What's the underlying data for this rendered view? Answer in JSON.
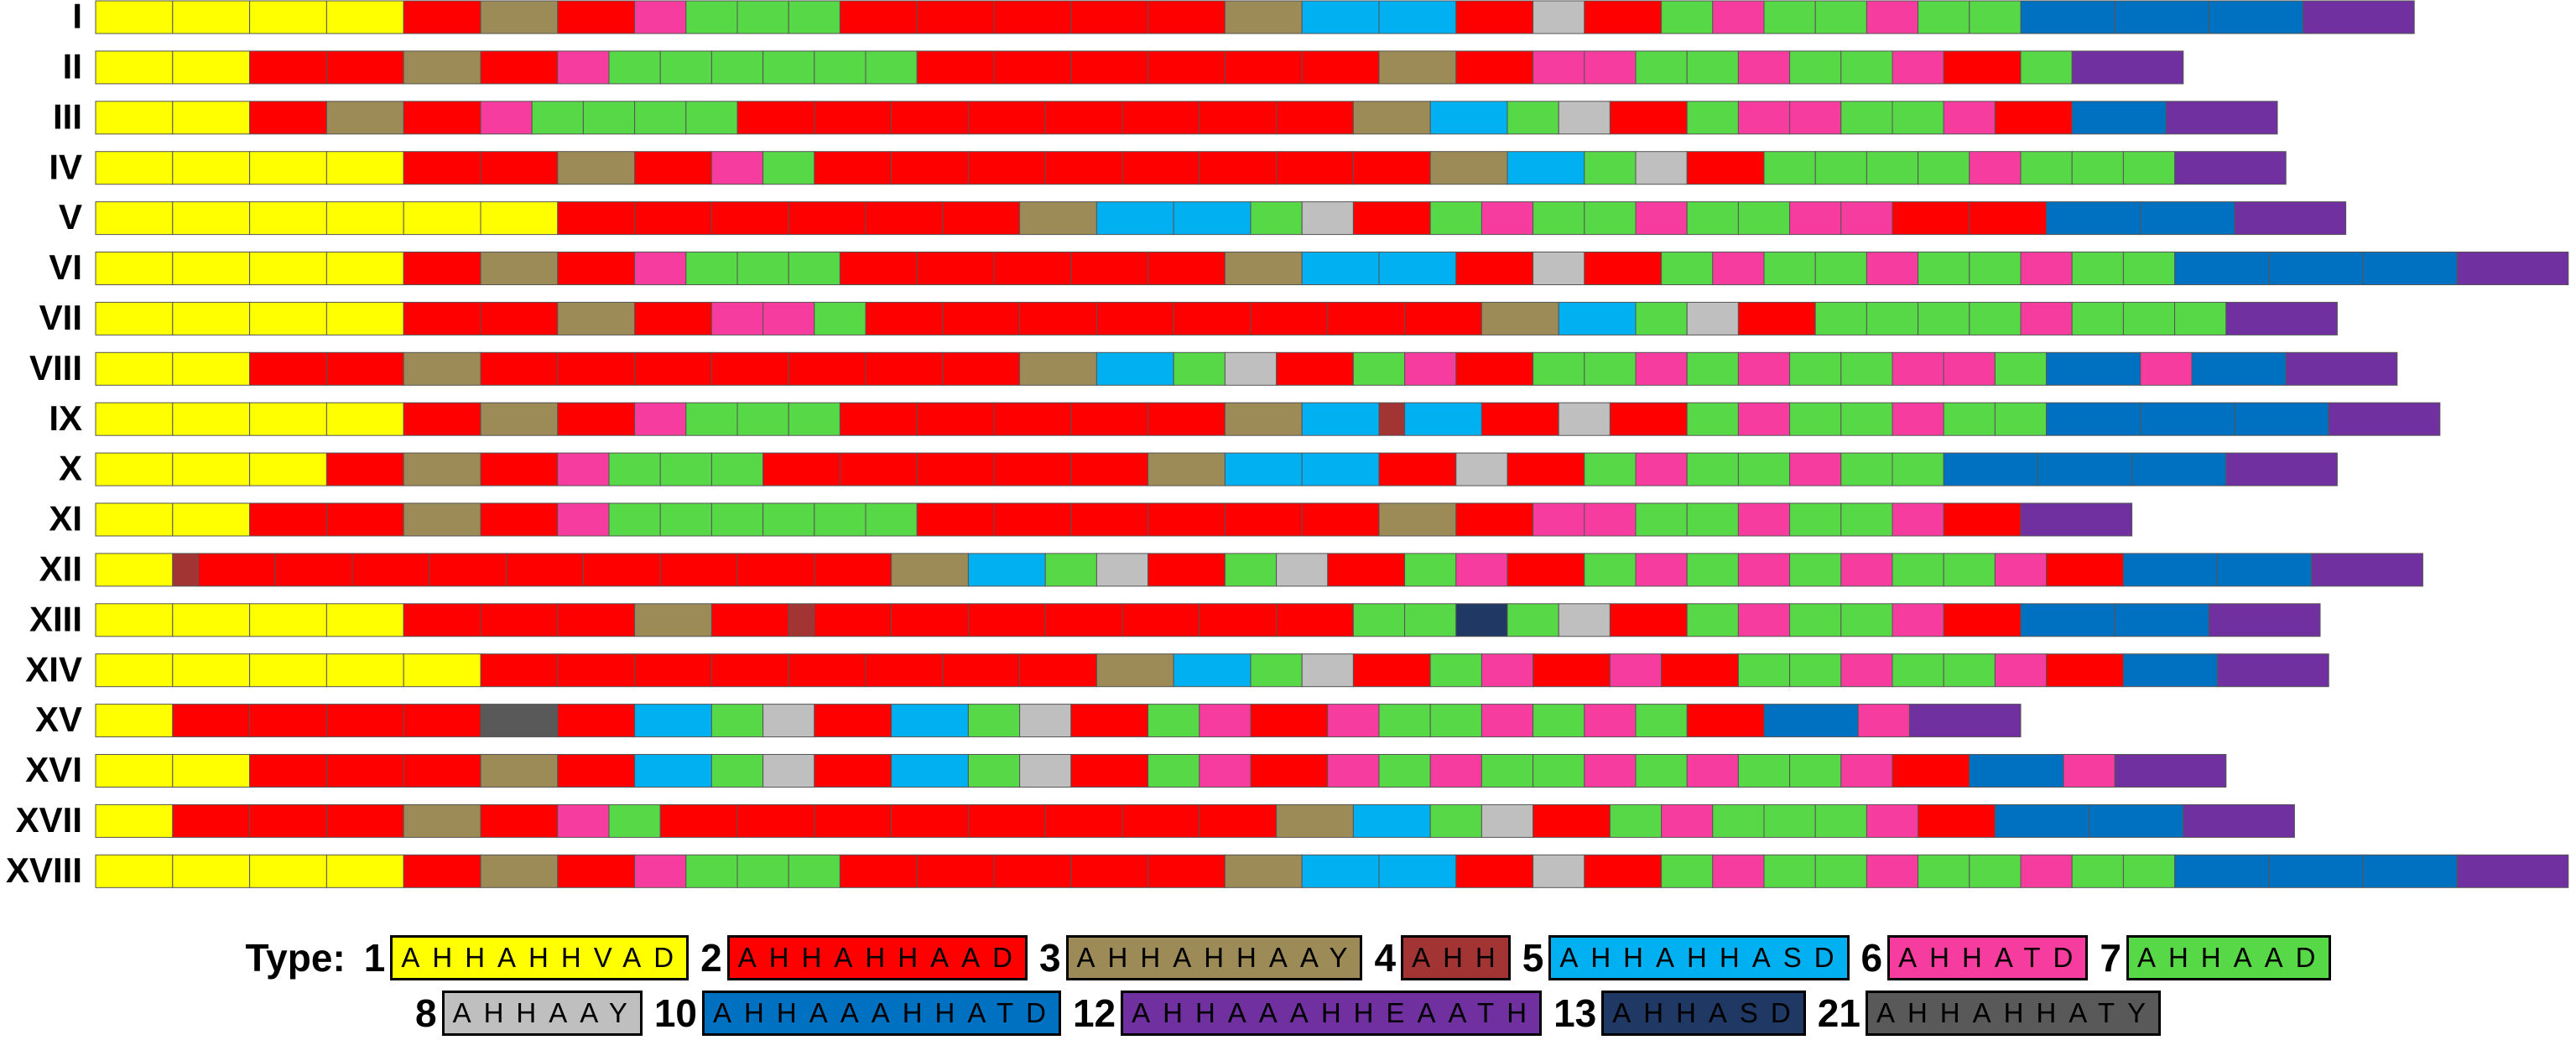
{
  "rows": [
    {
      "label": "I",
      "units": [
        1,
        1,
        1,
        1,
        2,
        3,
        2,
        6,
        7,
        7,
        7,
        2,
        2,
        2,
        2,
        2,
        3,
        5,
        5,
        2,
        8,
        2,
        7,
        6,
        7,
        7,
        6,
        7,
        7,
        10,
        10,
        10,
        12
      ]
    },
    {
      "label": "II",
      "units": [
        1,
        1,
        2,
        2,
        3,
        2,
        6,
        7,
        7,
        7,
        7,
        7,
        7,
        2,
        2,
        2,
        2,
        2,
        2,
        3,
        2,
        6,
        6,
        7,
        7,
        6,
        7,
        7,
        6,
        2,
        7,
        12
      ]
    },
    {
      "label": "III",
      "units": [
        1,
        1,
        2,
        3,
        2,
        6,
        7,
        7,
        7,
        7,
        2,
        2,
        2,
        2,
        2,
        2,
        2,
        2,
        3,
        5,
        7,
        8,
        2,
        7,
        6,
        6,
        7,
        7,
        6,
        2,
        10,
        12
      ]
    },
    {
      "label": "IV",
      "units": [
        1,
        1,
        1,
        1,
        2,
        2,
        3,
        2,
        6,
        7,
        2,
        2,
        2,
        2,
        2,
        2,
        2,
        2,
        3,
        5,
        7,
        8,
        2,
        7,
        7,
        7,
        7,
        6,
        7,
        7,
        7,
        12
      ]
    },
    {
      "label": "V",
      "units": [
        1,
        1,
        1,
        1,
        1,
        1,
        2,
        2,
        2,
        2,
        2,
        2,
        3,
        5,
        5,
        7,
        8,
        2,
        7,
        6,
        7,
        7,
        6,
        7,
        7,
        6,
        6,
        2,
        2,
        10,
        10,
        12
      ]
    },
    {
      "label": "VI",
      "units": [
        1,
        1,
        1,
        1,
        2,
        3,
        2,
        6,
        7,
        7,
        7,
        2,
        2,
        2,
        2,
        2,
        3,
        5,
        5,
        2,
        8,
        2,
        7,
        6,
        7,
        7,
        6,
        7,
        7,
        6,
        7,
        7,
        10,
        10,
        10,
        12
      ]
    },
    {
      "label": "VII",
      "units": [
        1,
        1,
        1,
        1,
        2,
        2,
        3,
        2,
        6,
        6,
        7,
        2,
        2,
        2,
        2,
        2,
        2,
        2,
        2,
        3,
        5,
        7,
        8,
        2,
        7,
        7,
        7,
        7,
        6,
        7,
        7,
        7,
        12
      ]
    },
    {
      "label": "VIII",
      "units": [
        1,
        1,
        2,
        2,
        3,
        2,
        2,
        2,
        2,
        2,
        2,
        2,
        3,
        5,
        7,
        8,
        2,
        7,
        6,
        2,
        7,
        7,
        6,
        7,
        6,
        7,
        7,
        6,
        6,
        7,
        10,
        6,
        10,
        12
      ]
    },
    {
      "label": "IX",
      "units": [
        1,
        1,
        1,
        1,
        2,
        3,
        2,
        6,
        7,
        7,
        7,
        2,
        2,
        2,
        2,
        2,
        3,
        5,
        4,
        5,
        2,
        8,
        2,
        7,
        6,
        7,
        7,
        6,
        7,
        7,
        10,
        10,
        10,
        12
      ]
    },
    {
      "label": "X",
      "units": [
        1,
        1,
        1,
        2,
        3,
        2,
        6,
        7,
        7,
        7,
        2,
        2,
        2,
        2,
        2,
        3,
        5,
        5,
        2,
        8,
        2,
        7,
        6,
        7,
        7,
        6,
        7,
        7,
        10,
        10,
        10,
        12
      ]
    },
    {
      "label": "XI",
      "units": [
        1,
        1,
        2,
        2,
        3,
        2,
        6,
        7,
        7,
        7,
        7,
        7,
        7,
        2,
        2,
        2,
        2,
        2,
        2,
        3,
        2,
        6,
        6,
        7,
        7,
        6,
        7,
        7,
        6,
        2,
        12
      ]
    },
    {
      "label": "XII",
      "units": [
        1,
        4,
        2,
        2,
        2,
        2,
        2,
        2,
        2,
        2,
        2,
        3,
        5,
        7,
        8,
        2,
        7,
        8,
        2,
        7,
        6,
        2,
        7,
        6,
        7,
        6,
        7,
        6,
        7,
        7,
        6,
        2,
        10,
        10,
        12
      ]
    },
    {
      "label": "XIII",
      "units": [
        1,
        1,
        1,
        1,
        2,
        2,
        2,
        3,
        2,
        4,
        2,
        2,
        2,
        2,
        2,
        2,
        2,
        7,
        7,
        13,
        7,
        8,
        2,
        7,
        6,
        7,
        7,
        6,
        2,
        10,
        10,
        12
      ]
    },
    {
      "label": "XIV",
      "units": [
        1,
        1,
        1,
        1,
        1,
        2,
        2,
        2,
        2,
        2,
        2,
        2,
        2,
        3,
        5,
        7,
        8,
        2,
        7,
        6,
        2,
        6,
        2,
        7,
        7,
        6,
        7,
        7,
        6,
        2,
        10,
        12
      ]
    },
    {
      "label": "XV",
      "units": [
        1,
        2,
        2,
        2,
        2,
        21,
        2,
        5,
        7,
        8,
        2,
        5,
        7,
        8,
        2,
        7,
        6,
        2,
        6,
        7,
        7,
        6,
        7,
        6,
        7,
        2,
        10,
        6,
        12
      ]
    },
    {
      "label": "XVI",
      "units": [
        1,
        1,
        2,
        2,
        2,
        3,
        2,
        5,
        7,
        8,
        2,
        5,
        7,
        8,
        2,
        7,
        6,
        2,
        6,
        7,
        6,
        7,
        7,
        6,
        7,
        6,
        7,
        7,
        6,
        2,
        10,
        6,
        12
      ]
    },
    {
      "label": "XVII",
      "units": [
        1,
        2,
        2,
        2,
        3,
        2,
        6,
        7,
        2,
        2,
        2,
        2,
        2,
        2,
        2,
        2,
        3,
        5,
        7,
        8,
        2,
        7,
        6,
        7,
        7,
        7,
        6,
        2,
        10,
        10,
        12
      ]
    },
    {
      "label": "XVIII",
      "units": [
        1,
        1,
        1,
        1,
        2,
        3,
        2,
        6,
        7,
        7,
        7,
        2,
        2,
        2,
        2,
        2,
        3,
        5,
        5,
        2,
        8,
        2,
        7,
        6,
        7,
        7,
        6,
        7,
        7,
        6,
        7,
        7,
        10,
        10,
        10,
        12
      ]
    }
  ],
  "legend": {
    "title": "Type:",
    "rows": [
      [
        {
          "type": 1,
          "motif": "AHHAHHVAD",
          "color": "#ffff00"
        },
        {
          "type": 2,
          "motif": "AHHAHHAAD",
          "color": "#ff0000"
        },
        {
          "type": 3,
          "motif": "AHHAHHAAY",
          "color": "#9c8b56"
        },
        {
          "type": 4,
          "motif": "AHH",
          "color": "#a33434"
        },
        {
          "type": 5,
          "motif": "AHHAHHASD",
          "color": "#00b0f0"
        },
        {
          "type": 6,
          "motif": "AHHATD",
          "color": "#f63c9e"
        },
        {
          "type": 7,
          "motif": "AHHAAD",
          "color": "#57d947"
        }
      ],
      [
        {
          "type": 8,
          "motif": "AHHAAY",
          "color": "#bfbfbf"
        },
        {
          "type": 10,
          "motif": "AHHAAAHHATD",
          "color": "#0070c0"
        },
        {
          "type": 12,
          "motif": "AHHAAAHHEAATH",
          "color": "#7030a0"
        },
        {
          "type": 13,
          "motif": "AHHASD",
          "color": "#1f3864"
        },
        {
          "type": 21,
          "motif": "AHHAHHATY",
          "color": "#595959"
        }
      ]
    ]
  }
}
